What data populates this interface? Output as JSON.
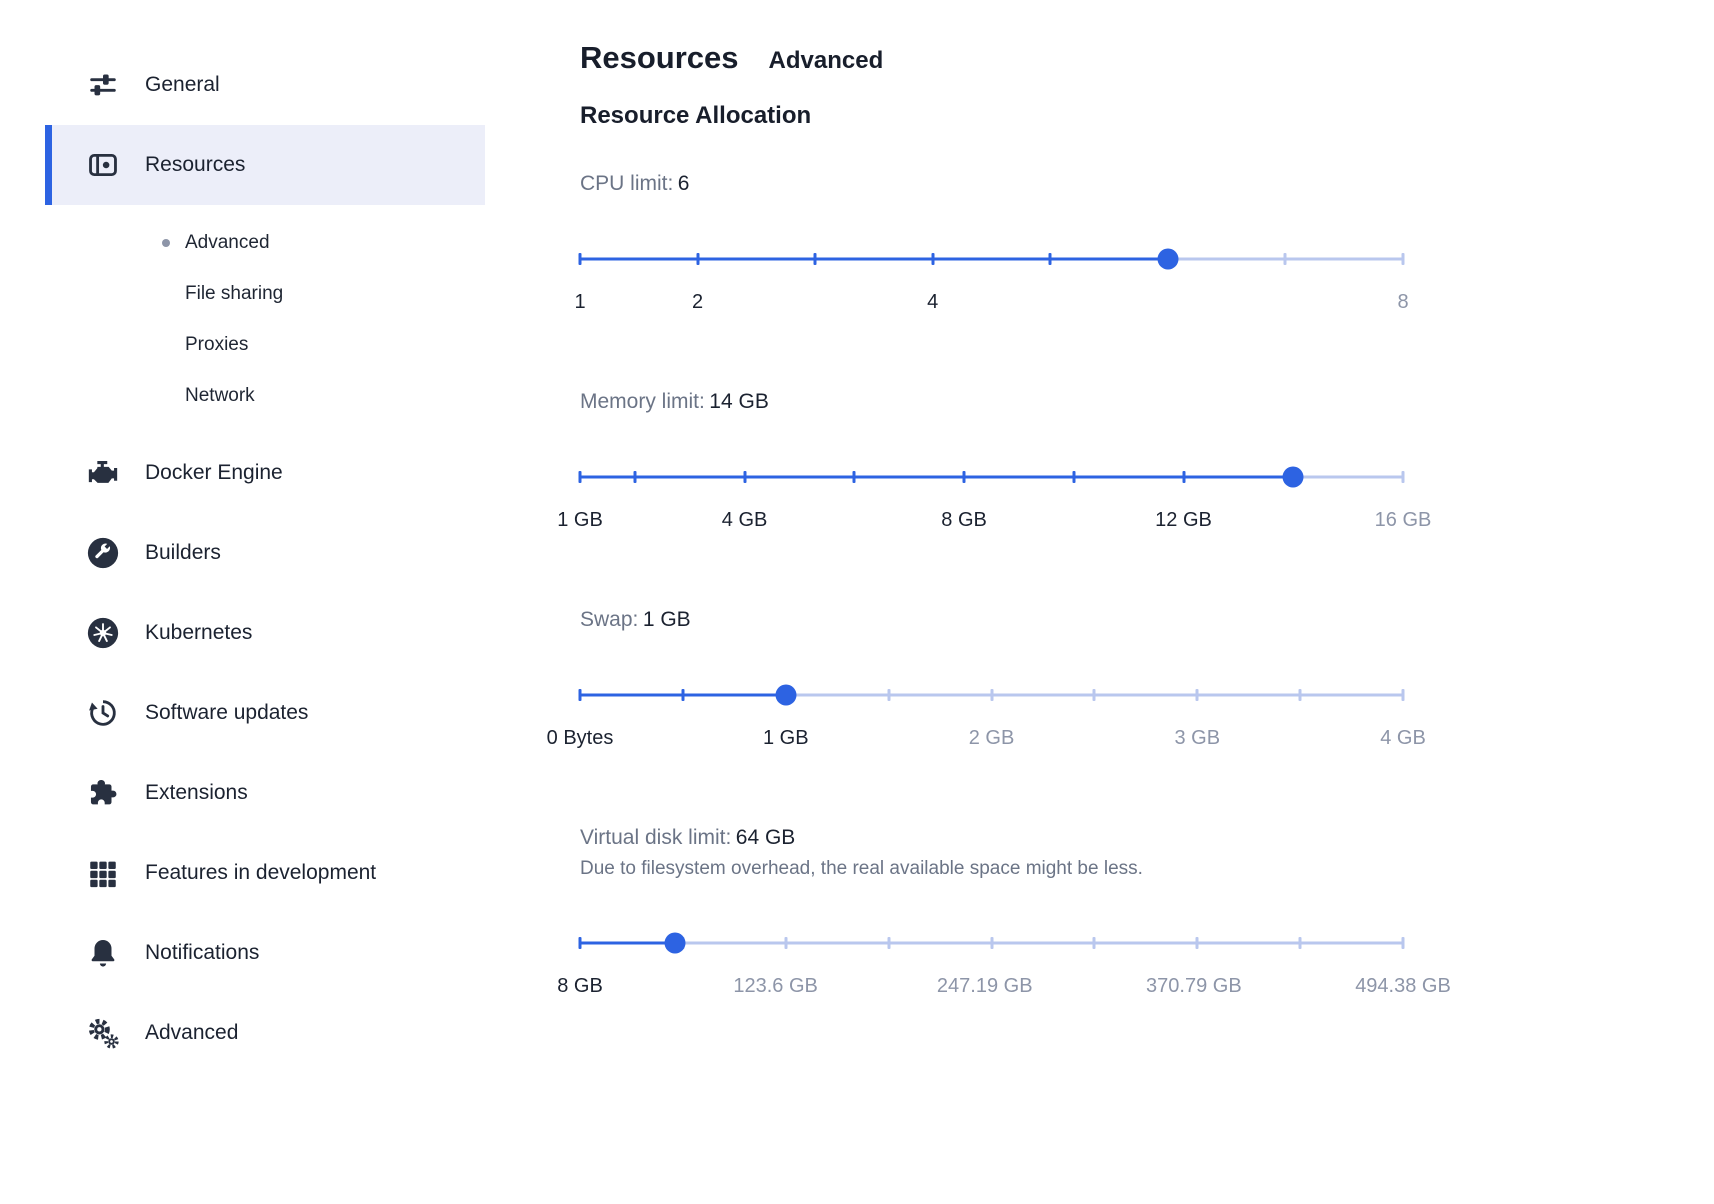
{
  "colors": {
    "accent": "#2d63e2",
    "track_inactive": "#b9c7ee",
    "sidebar_selected_bg": "#eceef9",
    "text_dark": "#1b2230",
    "text_gray": "#6b7486",
    "tick_label_inactive": "#8d95a8"
  },
  "header": {
    "title": "Resources",
    "subtitle": "Advanced",
    "section": "Resource Allocation"
  },
  "sidebar": {
    "items": [
      {
        "id": "general",
        "label": "General",
        "icon": "sliders-icon",
        "selected": false
      },
      {
        "id": "resources",
        "label": "Resources",
        "icon": "resources-icon",
        "selected": true,
        "children": [
          "Advanced",
          "File sharing",
          "Proxies",
          "Network"
        ],
        "active_child": "Advanced"
      },
      {
        "id": "docker-engine",
        "label": "Docker Engine",
        "icon": "engine-icon",
        "selected": false
      },
      {
        "id": "builders",
        "label": "Builders",
        "icon": "wrench-icon",
        "selected": false
      },
      {
        "id": "kubernetes",
        "label": "Kubernetes",
        "icon": "kubernetes-icon",
        "selected": false
      },
      {
        "id": "software-updates",
        "label": "Software updates",
        "icon": "history-icon",
        "selected": false
      },
      {
        "id": "extensions",
        "label": "Extensions",
        "icon": "puzzle-icon",
        "selected": false
      },
      {
        "id": "features-in-development",
        "label": "Features in development",
        "icon": "grid-icon",
        "selected": false
      },
      {
        "id": "notifications",
        "label": "Notifications",
        "icon": "bell-icon",
        "selected": false
      },
      {
        "id": "advanced",
        "label": "Advanced",
        "icon": "gears-icon",
        "selected": false
      }
    ]
  },
  "sliders": [
    {
      "id": "cpu-limit",
      "label": "CPU limit:",
      "value_text": "6",
      "min": 1,
      "max": 8,
      "value": 6,
      "ticks": [
        1,
        2,
        3,
        4,
        5,
        6,
        7,
        8
      ],
      "labels": [
        {
          "value": 1,
          "text": "1"
        },
        {
          "value": 2,
          "text": "2"
        },
        {
          "value": 4,
          "text": "4"
        },
        {
          "value": 8,
          "text": "8"
        }
      ]
    },
    {
      "id": "memory-limit",
      "label": "Memory limit:",
      "value_text": "14 GB",
      "min": 1,
      "max": 16,
      "value": 14,
      "ticks": [
        1,
        2,
        4,
        6,
        8,
        10,
        12,
        14,
        16
      ],
      "labels": [
        {
          "value": 1,
          "text": "1 GB"
        },
        {
          "value": 4,
          "text": "4 GB"
        },
        {
          "value": 8,
          "text": "8 GB"
        },
        {
          "value": 12,
          "text": "12 GB"
        },
        {
          "value": 16,
          "text": "16 GB"
        }
      ]
    },
    {
      "id": "swap",
      "label": "Swap:",
      "value_text": "1 GB",
      "min": 0,
      "max": 4,
      "value": 1,
      "ticks": [
        0,
        0.5,
        1,
        1.5,
        2,
        2.5,
        3,
        3.5,
        4
      ],
      "labels": [
        {
          "value": 0,
          "text": "0 Bytes"
        },
        {
          "value": 1,
          "text": "1 GB"
        },
        {
          "value": 2,
          "text": "2 GB"
        },
        {
          "value": 3,
          "text": "3 GB"
        },
        {
          "value": 4,
          "text": "4 GB"
        }
      ]
    },
    {
      "id": "virtual-disk-limit",
      "label": "Virtual disk limit:",
      "value_text": "64 GB",
      "note": "Due to filesystem overhead, the real available space might be less.",
      "min": 8,
      "max": 494.38,
      "value": 64,
      "ticks": [
        8,
        68.8,
        129.59,
        190.39,
        251.19,
        311.99,
        372.79,
        433.58,
        494.38
      ],
      "labels": [
        {
          "value": 8,
          "text": "8 GB"
        },
        {
          "value": 123.6,
          "text": "123.6 GB"
        },
        {
          "value": 247.19,
          "text": "247.19 GB"
        },
        {
          "value": 370.79,
          "text": "370.79 GB"
        },
        {
          "value": 494.38,
          "text": "494.38 GB"
        }
      ]
    }
  ]
}
